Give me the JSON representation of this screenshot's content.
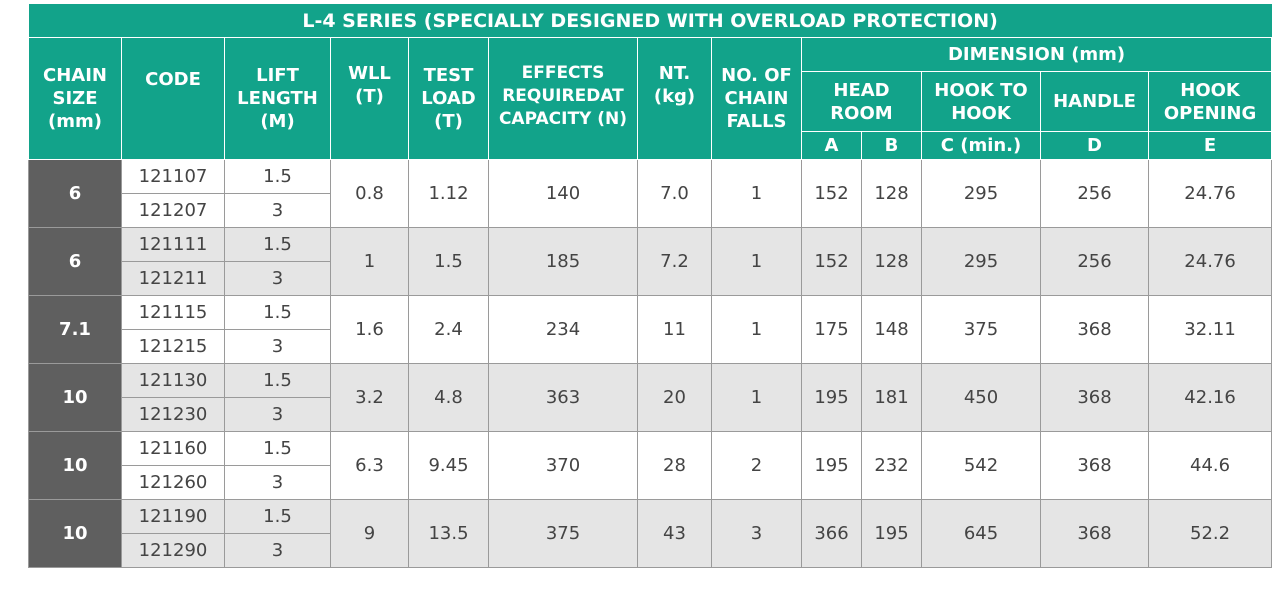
{
  "title": "L-4 SERIES (SPECIALLY DESIGNED WITH OVERLOAD PROTECTION)",
  "headers": {
    "chain_size": "CHAIN\nSIZE\n(mm)",
    "code": "CODE",
    "lift_length": "LIFT\nLENGTH\n(M)",
    "wll": "WLL\n(T)",
    "test_load": "TEST\nLOAD\n(T)",
    "effects": "EFFECTS\nREQUIREDAT\nCAPACITY (N)",
    "nt": "NT.\n(kg)",
    "chain_falls": "NO. OF\nCHAIN\nFALLS",
    "dimension": "DIMENSION (mm)",
    "head_room": "HEAD\nROOM",
    "hook_to_hook": "HOOK TO\nHOOK",
    "handle": "HANDLE",
    "hook_opening": "HOOK\nOPENING",
    "a": "A",
    "b": "B",
    "c": "C (min.)",
    "d": "D",
    "e": "E"
  },
  "groups": [
    {
      "size": "6",
      "code1": "121107",
      "len1": "1.5",
      "code2": "121207",
      "len2": "3",
      "wll": "0.8",
      "test": "1.12",
      "effects": "140",
      "nt": "7.0",
      "falls": "1",
      "a": "152",
      "b": "128",
      "c": "295",
      "d": "256",
      "e": "24.76"
    },
    {
      "size": "6",
      "code1": "121111",
      "len1": "1.5",
      "code2": "121211",
      "len2": "3",
      "wll": "1",
      "test": "1.5",
      "effects": "185",
      "nt": "7.2",
      "falls": "1",
      "a": "152",
      "b": "128",
      "c": "295",
      "d": "256",
      "e": "24.76"
    },
    {
      "size": "7.1",
      "code1": "121115",
      "len1": "1.5",
      "code2": "121215",
      "len2": "3",
      "wll": "1.6",
      "test": "2.4",
      "effects": "234",
      "nt": "11",
      "falls": "1",
      "a": "175",
      "b": "148",
      "c": "375",
      "d": "368",
      "e": "32.11"
    },
    {
      "size": "10",
      "code1": "121130",
      "len1": "1.5",
      "code2": "121230",
      "len2": "3",
      "wll": "3.2",
      "test": "4.8",
      "effects": "363",
      "nt": "20",
      "falls": "1",
      "a": "195",
      "b": "181",
      "c": "450",
      "d": "368",
      "e": "42.16"
    },
    {
      "size": "10",
      "code1": "121160",
      "len1": "1.5",
      "code2": "121260",
      "len2": "3",
      "wll": "6.3",
      "test": "9.45",
      "effects": "370",
      "nt": "28",
      "falls": "2",
      "a": "195",
      "b": "232",
      "c": "542",
      "d": "368",
      "e": "44.6"
    },
    {
      "size": "10",
      "code1": "121190",
      "len1": "1.5",
      "code2": "121290",
      "len2": "3",
      "wll": "9",
      "test": "13.5",
      "effects": "375",
      "nt": "43",
      "falls": "3",
      "a": "366",
      "b": "195",
      "c": "645",
      "d": "368",
      "e": "52.2"
    }
  ],
  "colors": {
    "header_bg": "#12a38a",
    "size_bg": "#5f5f5f",
    "row_alt_bg": "#e5e5e5"
  }
}
